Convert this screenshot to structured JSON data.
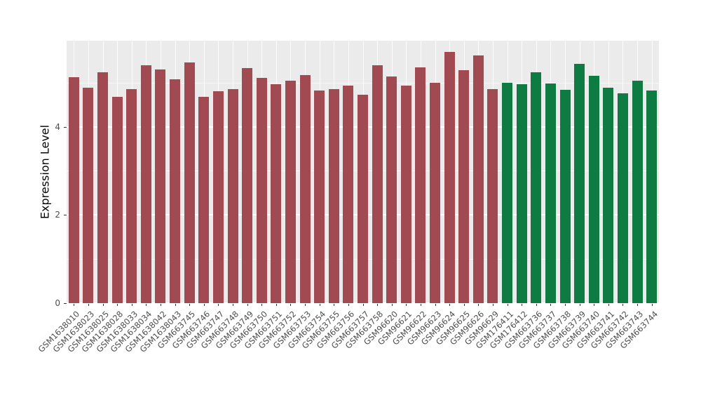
{
  "chart_data": {
    "type": "bar",
    "title": "",
    "xlabel": "",
    "ylabel": "Expression Level",
    "ylim": [
      0,
      5.95
    ],
    "yticks": [
      0,
      2,
      4
    ],
    "minor_yticks": [
      1,
      3,
      5
    ],
    "grid": true,
    "legend": "none",
    "panel_background": "#EBEBEB",
    "grid_color": "#FFFFFF",
    "categories": [
      "GSM1638010",
      "GSM1638023",
      "GSM1638025",
      "GSM1638028",
      "GSM1638033",
      "GSM1638034",
      "GSM1638042",
      "GSM1638043",
      "GSM663745",
      "GSM663746",
      "GSM663747",
      "GSM663748",
      "GSM663749",
      "GSM663750",
      "GSM663751",
      "GSM663752",
      "GSM663753",
      "GSM663754",
      "GSM663755",
      "GSM663756",
      "GSM663757",
      "GSM663758",
      "GSM96620",
      "GSM96621",
      "GSM96622",
      "GSM96623",
      "GSM96624",
      "GSM96625",
      "GSM96626",
      "GSM96629",
      "GSM176411",
      "GSM176412",
      "GSM663736",
      "GSM663737",
      "GSM663738",
      "GSM663739",
      "GSM663740",
      "GSM663741",
      "GSM663742",
      "GSM663743",
      "GSM663744"
    ],
    "values": [
      5.12,
      4.88,
      5.23,
      4.67,
      4.86,
      5.39,
      5.3,
      5.08,
      5.45,
      4.68,
      4.8,
      4.86,
      5.33,
      5.1,
      4.96,
      5.05,
      5.17,
      4.82,
      4.85,
      4.93,
      4.72,
      5.4,
      5.14,
      4.94,
      5.35,
      5.0,
      5.7,
      5.28,
      5.62,
      4.86,
      4.99,
      4.97,
      5.24,
      4.98,
      4.83,
      5.42,
      5.16,
      4.89,
      4.75,
      5.05,
      4.82
    ],
    "groups": [
      "group1",
      "group1",
      "group1",
      "group1",
      "group1",
      "group1",
      "group1",
      "group1",
      "group1",
      "group1",
      "group1",
      "group1",
      "group1",
      "group1",
      "group1",
      "group1",
      "group1",
      "group1",
      "group1",
      "group1",
      "group1",
      "group1",
      "group1",
      "group1",
      "group1",
      "group1",
      "group1",
      "group1",
      "group1",
      "group1",
      "group2",
      "group2",
      "group2",
      "group2",
      "group2",
      "group2",
      "group2",
      "group2",
      "group2",
      "group2",
      "group2"
    ],
    "group_colors": {
      "group1": "#A14A52",
      "group2": "#0E7B43"
    }
  }
}
